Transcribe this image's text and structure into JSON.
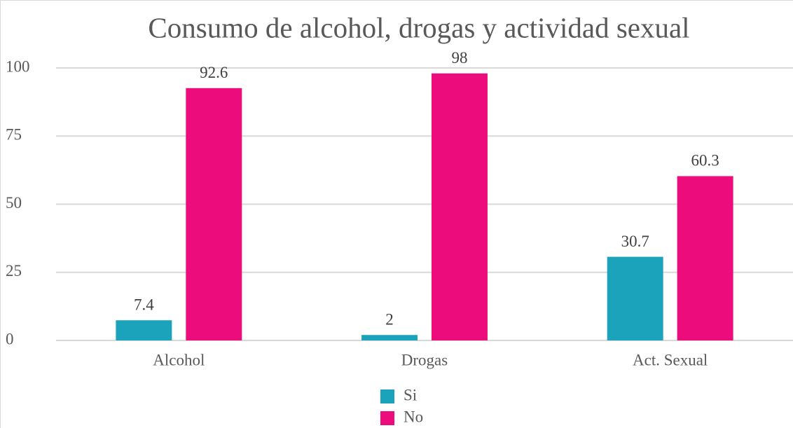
{
  "chart_data": {
    "type": "bar",
    "title": "Consumo de alcohol, drogas y actividad sexual",
    "categories": [
      "Alcohol",
      "Drogas",
      "Act. Sexual"
    ],
    "series": [
      {
        "name": "Si",
        "color": "#1aa3bb",
        "values": [
          7.4,
          2,
          30.7
        ]
      },
      {
        "name": "No",
        "color": "#ec0c7c",
        "values": [
          92.6,
          98,
          60.3
        ]
      }
    ],
    "ylim": [
      0,
      100
    ],
    "yticks": [
      0,
      25,
      50,
      75,
      100
    ],
    "grid": true,
    "legend": "bottom"
  }
}
